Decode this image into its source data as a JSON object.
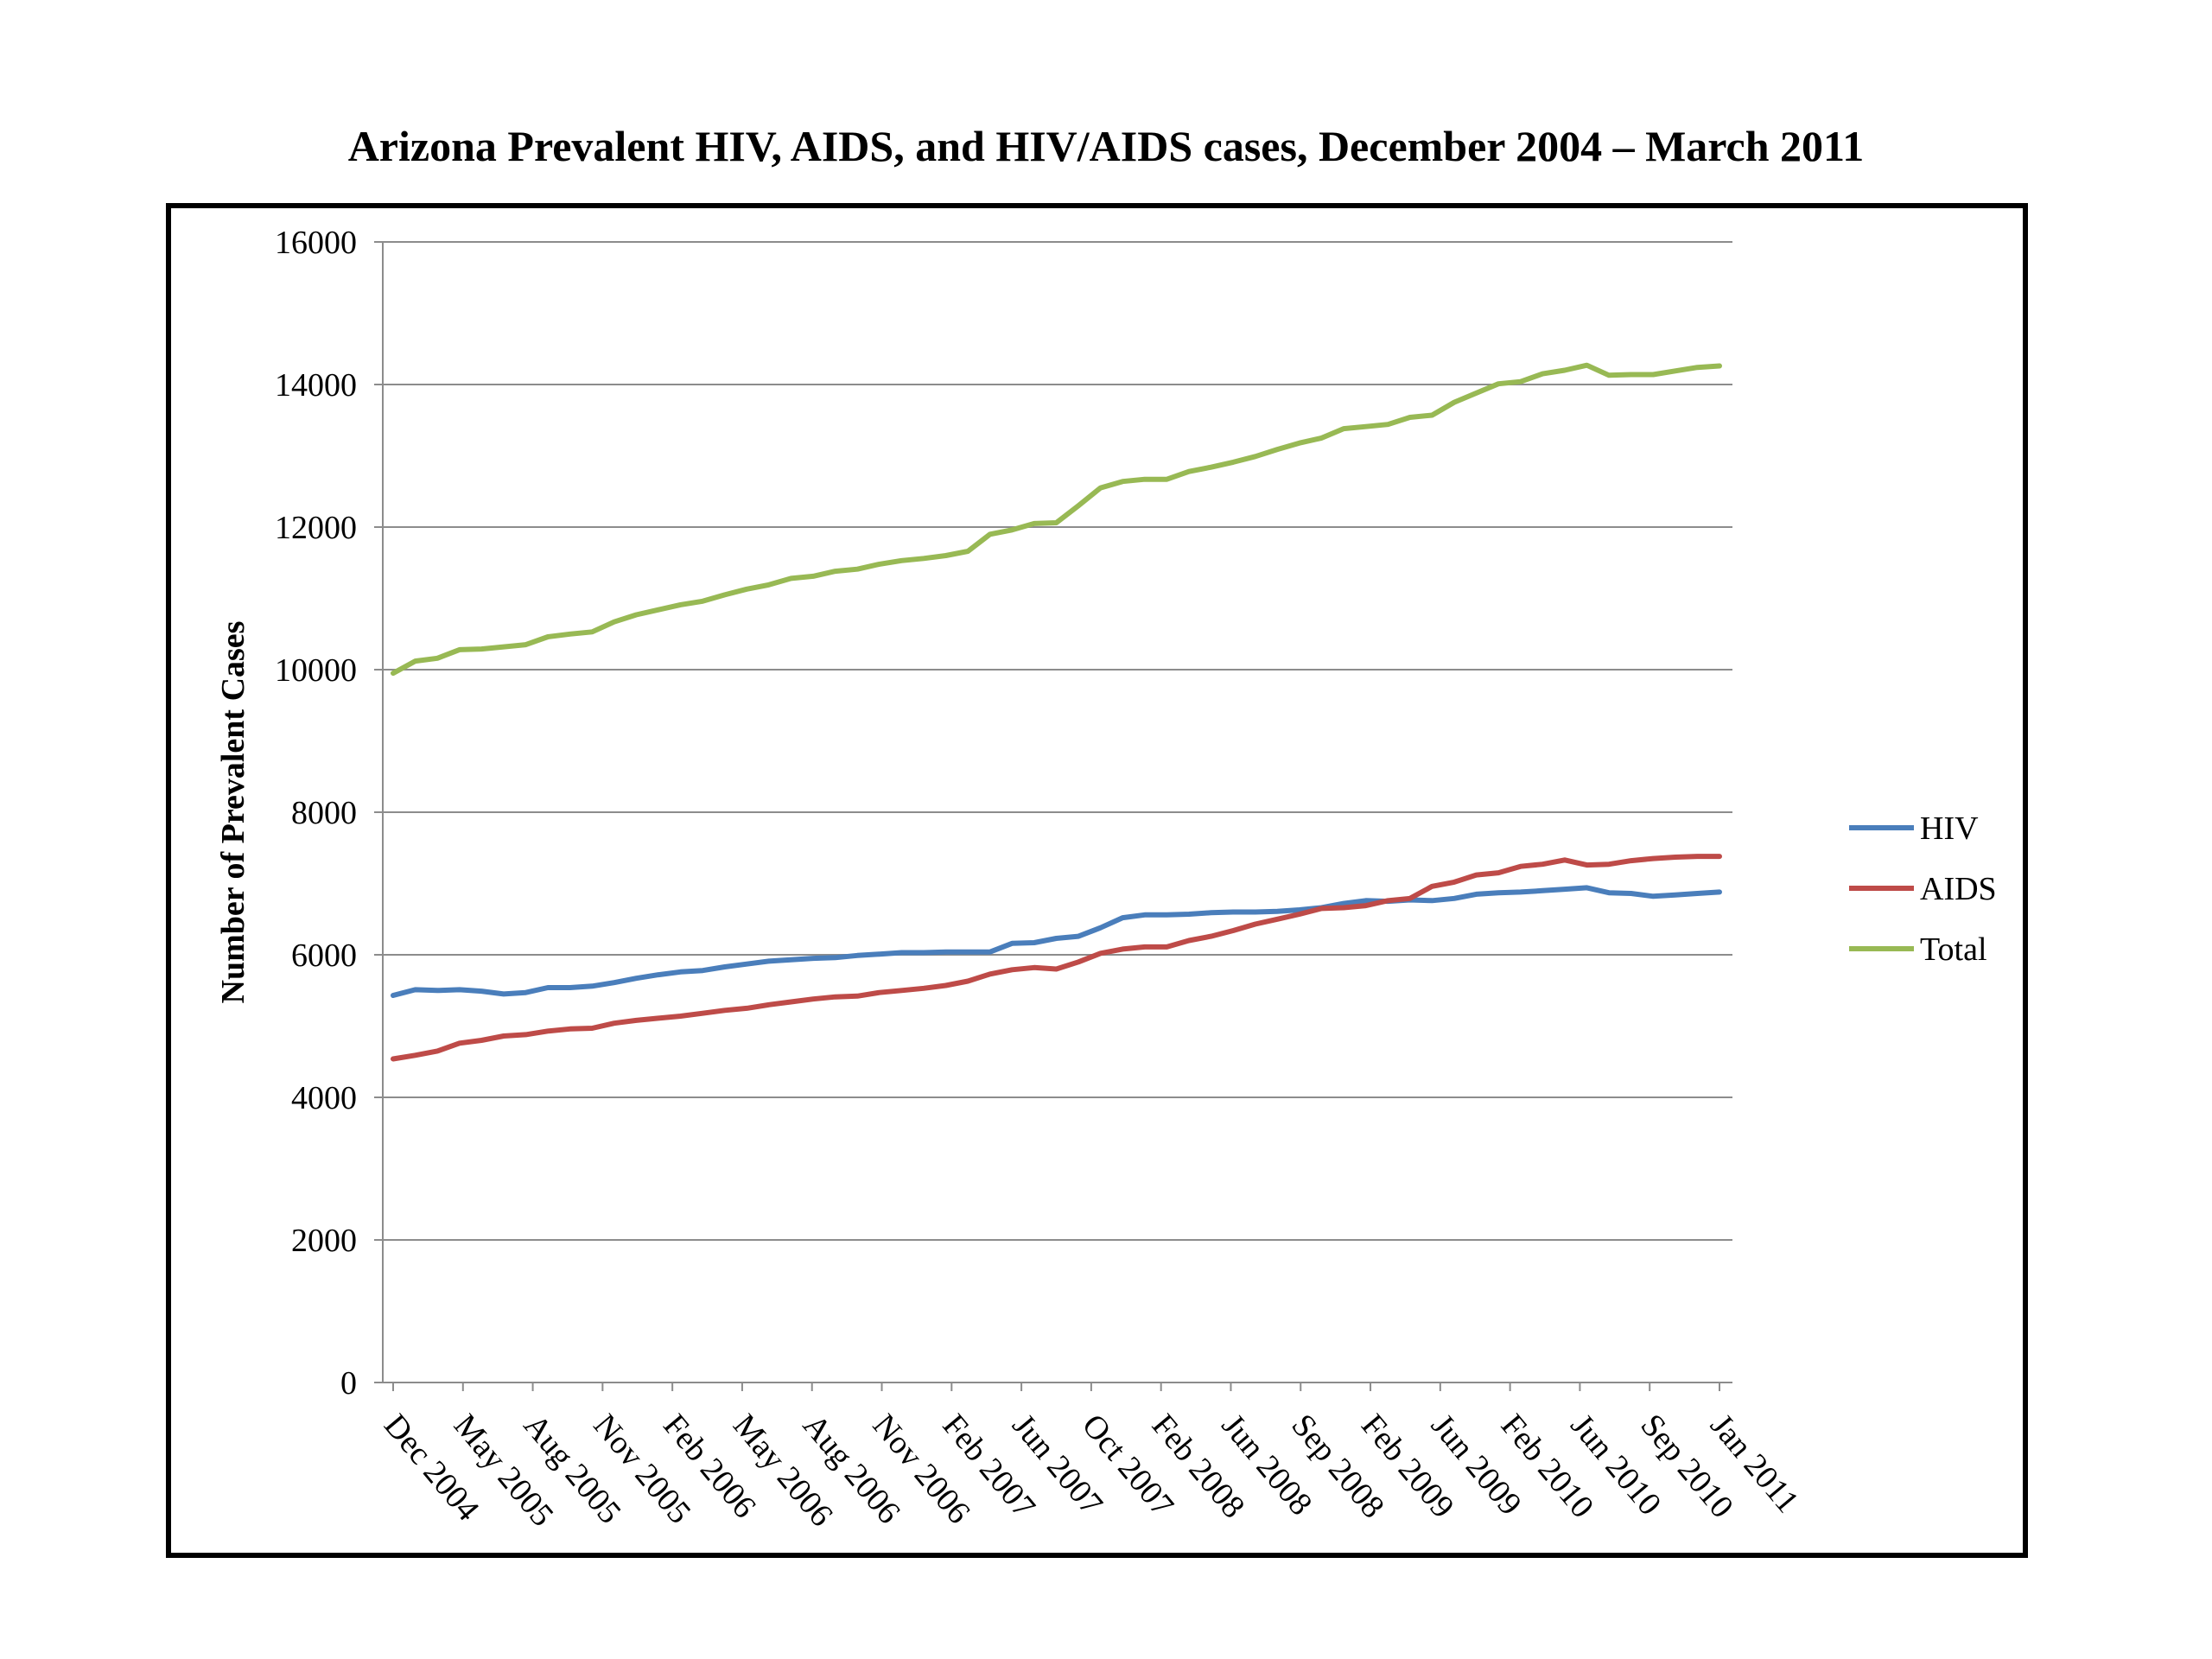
{
  "chart_data": {
    "type": "line",
    "title": "Arizona Prevalent HIV, AIDS, and HIV/AIDS cases, December 2004 – March 2011",
    "xlabel": "",
    "ylabel": "Number of Prevalent Cases",
    "ylim": [
      0,
      16000
    ],
    "yticks": [
      0,
      2000,
      4000,
      6000,
      8000,
      10000,
      12000,
      14000,
      16000
    ],
    "xtick_labels": [
      "Dec 2004",
      "May 2005",
      "Aug 2005",
      "Nov 2005",
      "Feb 2006",
      "May 2006",
      "Aug 2006",
      "Nov 2006",
      "Feb 2007",
      "Jun 2007",
      "Oct 2007",
      "Feb 2008",
      "Jun 2008",
      "Sep 2008",
      "Feb 2009",
      "Jun 2009",
      "Feb 2010",
      "Jun 2010",
      "Sep 2010",
      "Jan 2011"
    ],
    "grid": true,
    "legend_position": "right",
    "series": [
      {
        "name": "HIV",
        "color": "#4a7ebb",
        "values": [
          5430,
          5510,
          5500,
          5510,
          5490,
          5450,
          5470,
          5540,
          5540,
          5560,
          5610,
          5670,
          5720,
          5760,
          5780,
          5830,
          5870,
          5910,
          5930,
          5950,
          5960,
          5990,
          6010,
          6030,
          6030,
          6040,
          6040,
          6040,
          6160,
          6170,
          6230,
          6260,
          6380,
          6520,
          6560,
          6560,
          6570,
          6590,
          6600,
          6600,
          6610,
          6630,
          6660,
          6720,
          6760,
          6750,
          6770,
          6760,
          6790,
          6850,
          6870,
          6880,
          6900,
          6920,
          6940,
          6870,
          6860,
          6820,
          6840,
          6860,
          6880
        ]
      },
      {
        "name": "AIDS",
        "color": "#be4b48",
        "values": [
          4540,
          4590,
          4650,
          4760,
          4800,
          4860,
          4880,
          4930,
          4960,
          4970,
          5040,
          5080,
          5110,
          5140,
          5180,
          5220,
          5250,
          5300,
          5340,
          5380,
          5410,
          5420,
          5470,
          5500,
          5530,
          5570,
          5630,
          5730,
          5790,
          5820,
          5800,
          5900,
          6020,
          6080,
          6110,
          6110,
          6200,
          6260,
          6340,
          6430,
          6500,
          6570,
          6650,
          6660,
          6690,
          6760,
          6790,
          6960,
          7020,
          7120,
          7150,
          7240,
          7270,
          7330,
          7260,
          7270,
          7320,
          7350,
          7370,
          7380,
          7380
        ]
      },
      {
        "name": "Total",
        "color": "#98b954",
        "values": [
          9950,
          10120,
          10160,
          10280,
          10290,
          10320,
          10350,
          10460,
          10500,
          10530,
          10670,
          10770,
          10840,
          10910,
          10960,
          11050,
          11130,
          11190,
          11280,
          11310,
          11380,
          11410,
          11480,
          11530,
          11560,
          11600,
          11660,
          11900,
          11960,
          12050,
          12060,
          12300,
          12550,
          12640,
          12670,
          12670,
          12780,
          12840,
          12910,
          12990,
          13090,
          13180,
          13250,
          13380,
          13410,
          13440,
          13540,
          13570,
          13750,
          13880,
          14010,
          14040,
          14150,
          14200,
          14270,
          14130,
          14140,
          14140,
          14190,
          14240,
          14260
        ]
      }
    ]
  }
}
